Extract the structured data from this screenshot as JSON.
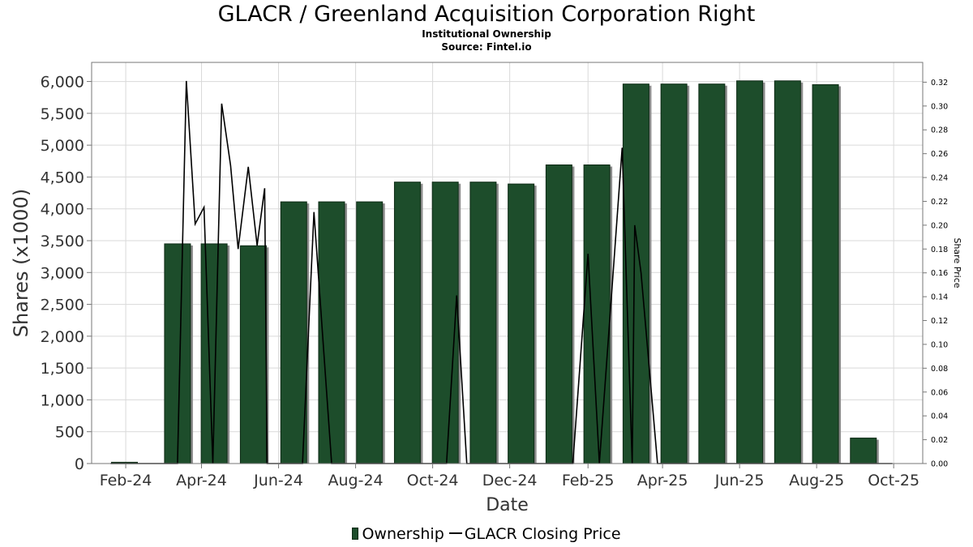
{
  "header": {
    "title": "GLACR / Greenland Acquisition Corporation Right",
    "subtitle": "Institutional Ownership",
    "source": "Source: Fintel.io"
  },
  "legend": {
    "items": [
      "Ownership",
      "GLACR Closing Price"
    ]
  },
  "colors": {
    "bar_fill": "#1d4d2b",
    "bar_shadow": "#8c8c8c",
    "price_line": "#000000",
    "grid": "#d9d9d9"
  },
  "chart_data": {
    "type": "bar",
    "xlabel": "Date",
    "ylabel": "Shares (x1000)",
    "y2label": "Share Price",
    "ylim": [
      0,
      6300
    ],
    "y2lim": [
      0,
      0.3366
    ],
    "x_range": [
      "2024-01-05",
      "2025-10-24"
    ],
    "grid": true,
    "legend_position": "bottom",
    "yticks": [
      {
        "label": "0",
        "value": 0
      },
      {
        "label": "500",
        "value": 500
      },
      {
        "label": "1,000",
        "value": 1000
      },
      {
        "label": "1,500",
        "value": 1500
      },
      {
        "label": "2,000",
        "value": 2000
      },
      {
        "label": "2,500",
        "value": 2500
      },
      {
        "label": "3,000",
        "value": 3000
      },
      {
        "label": "3,500",
        "value": 3500
      },
      {
        "label": "4,000",
        "value": 4000
      },
      {
        "label": "4,500",
        "value": 4500
      },
      {
        "label": "5,000",
        "value": 5000
      },
      {
        "label": "5,500",
        "value": 5500
      },
      {
        "label": "6,000",
        "value": 6000
      }
    ],
    "y2ticks": [
      {
        "label": "0.00",
        "value": 0.0
      },
      {
        "label": "0.02",
        "value": 0.02
      },
      {
        "label": "0.04",
        "value": 0.04
      },
      {
        "label": "0.06",
        "value": 0.06
      },
      {
        "label": "0.08",
        "value": 0.08
      },
      {
        "label": "0.10",
        "value": 0.1
      },
      {
        "label": "0.12",
        "value": 0.12
      },
      {
        "label": "0.14",
        "value": 0.14
      },
      {
        "label": "0.16",
        "value": 0.16
      },
      {
        "label": "0.18",
        "value": 0.18
      },
      {
        "label": "0.20",
        "value": 0.2
      },
      {
        "label": "0.22",
        "value": 0.22
      },
      {
        "label": "0.24",
        "value": 0.24
      },
      {
        "label": "0.26",
        "value": 0.26
      },
      {
        "label": "0.28",
        "value": 0.28
      },
      {
        "label": "0.30",
        "value": 0.3
      },
      {
        "label": "0.32",
        "value": 0.32
      }
    ],
    "xticks": [
      {
        "label": "Feb-24",
        "date": "2024-02-01"
      },
      {
        "label": "Apr-24",
        "date": "2024-04-01"
      },
      {
        "label": "Jun-24",
        "date": "2024-06-01"
      },
      {
        "label": "Aug-24",
        "date": "2024-08-01"
      },
      {
        "label": "Oct-24",
        "date": "2024-10-01"
      },
      {
        "label": "Dec-24",
        "date": "2024-12-01"
      },
      {
        "label": "Feb-25",
        "date": "2025-02-01"
      },
      {
        "label": "Apr-25",
        "date": "2025-04-01"
      },
      {
        "label": "Jun-25",
        "date": "2025-06-01"
      },
      {
        "label": "Aug-25",
        "date": "2025-08-01"
      },
      {
        "label": "Oct-25",
        "date": "2025-10-01"
      }
    ],
    "series": [
      {
        "name": "Ownership",
        "type": "bar",
        "points": [
          {
            "date": "2024-01-31",
            "value": 20
          },
          {
            "date": "2024-03-13",
            "value": 3450
          },
          {
            "date": "2024-04-11",
            "value": 3450
          },
          {
            "date": "2024-05-12",
            "value": 3420
          },
          {
            "date": "2024-06-13",
            "value": 4110
          },
          {
            "date": "2024-07-13",
            "value": 4110
          },
          {
            "date": "2024-08-12",
            "value": 4110
          },
          {
            "date": "2024-09-11",
            "value": 4420
          },
          {
            "date": "2024-10-11",
            "value": 4420
          },
          {
            "date": "2024-11-10",
            "value": 4420
          },
          {
            "date": "2024-12-10",
            "value": 4390
          },
          {
            "date": "2025-01-09",
            "value": 4690
          },
          {
            "date": "2025-02-08",
            "value": 4690
          },
          {
            "date": "2025-03-11",
            "value": 5960
          },
          {
            "date": "2025-04-10",
            "value": 5960
          },
          {
            "date": "2025-05-10",
            "value": 5960
          },
          {
            "date": "2025-06-09",
            "value": 6010
          },
          {
            "date": "2025-07-09",
            "value": 6010
          },
          {
            "date": "2025-08-08",
            "value": 5950
          },
          {
            "date": "2025-09-07",
            "value": 400
          }
        ]
      },
      {
        "name": "GLACR Closing Price",
        "type": "line",
        "points": [
          {
            "date": "2024-01-20",
            "value": 0.0
          },
          {
            "date": "2024-02-20",
            "value": 0.0
          },
          {
            "date": "2024-03-13",
            "value": 0.0
          },
          {
            "date": "2024-03-20",
            "value": 0.321
          },
          {
            "date": "2024-03-27",
            "value": 0.201
          },
          {
            "date": "2024-04-03",
            "value": 0.215
          },
          {
            "date": "2024-04-10",
            "value": 0.0
          },
          {
            "date": "2024-04-17",
            "value": 0.302
          },
          {
            "date": "2024-04-24",
            "value": 0.25
          },
          {
            "date": "2024-04-30",
            "value": 0.18
          },
          {
            "date": "2024-05-08",
            "value": 0.249
          },
          {
            "date": "2024-05-15",
            "value": 0.183
          },
          {
            "date": "2024-05-21",
            "value": 0.231
          },
          {
            "date": "2024-05-23",
            "value": 0.0
          },
          {
            "date": "2024-06-01",
            "value": 0.0
          },
          {
            "date": "2024-06-20",
            "value": 0.0
          },
          {
            "date": "2024-06-29",
            "value": 0.211
          },
          {
            "date": "2024-07-13",
            "value": 0.0
          },
          {
            "date": "2024-08-30",
            "value": 0.0
          },
          {
            "date": "2024-10-12",
            "value": 0.0
          },
          {
            "date": "2024-10-20",
            "value": 0.141
          },
          {
            "date": "2024-10-28",
            "value": 0.0
          },
          {
            "date": "2024-11-30",
            "value": 0.0
          },
          {
            "date": "2025-01-20",
            "value": 0.0
          },
          {
            "date": "2025-02-01",
            "value": 0.176
          },
          {
            "date": "2025-02-10",
            "value": 0.0
          },
          {
            "date": "2025-02-28",
            "value": 0.265
          },
          {
            "date": "2025-03-08",
            "value": 0.0
          },
          {
            "date": "2025-03-10",
            "value": 0.2
          },
          {
            "date": "2025-03-15",
            "value": 0.16
          },
          {
            "date": "2025-03-28",
            "value": 0.0
          },
          {
            "date": "2025-09-30",
            "value": 0.0
          }
        ]
      }
    ]
  }
}
